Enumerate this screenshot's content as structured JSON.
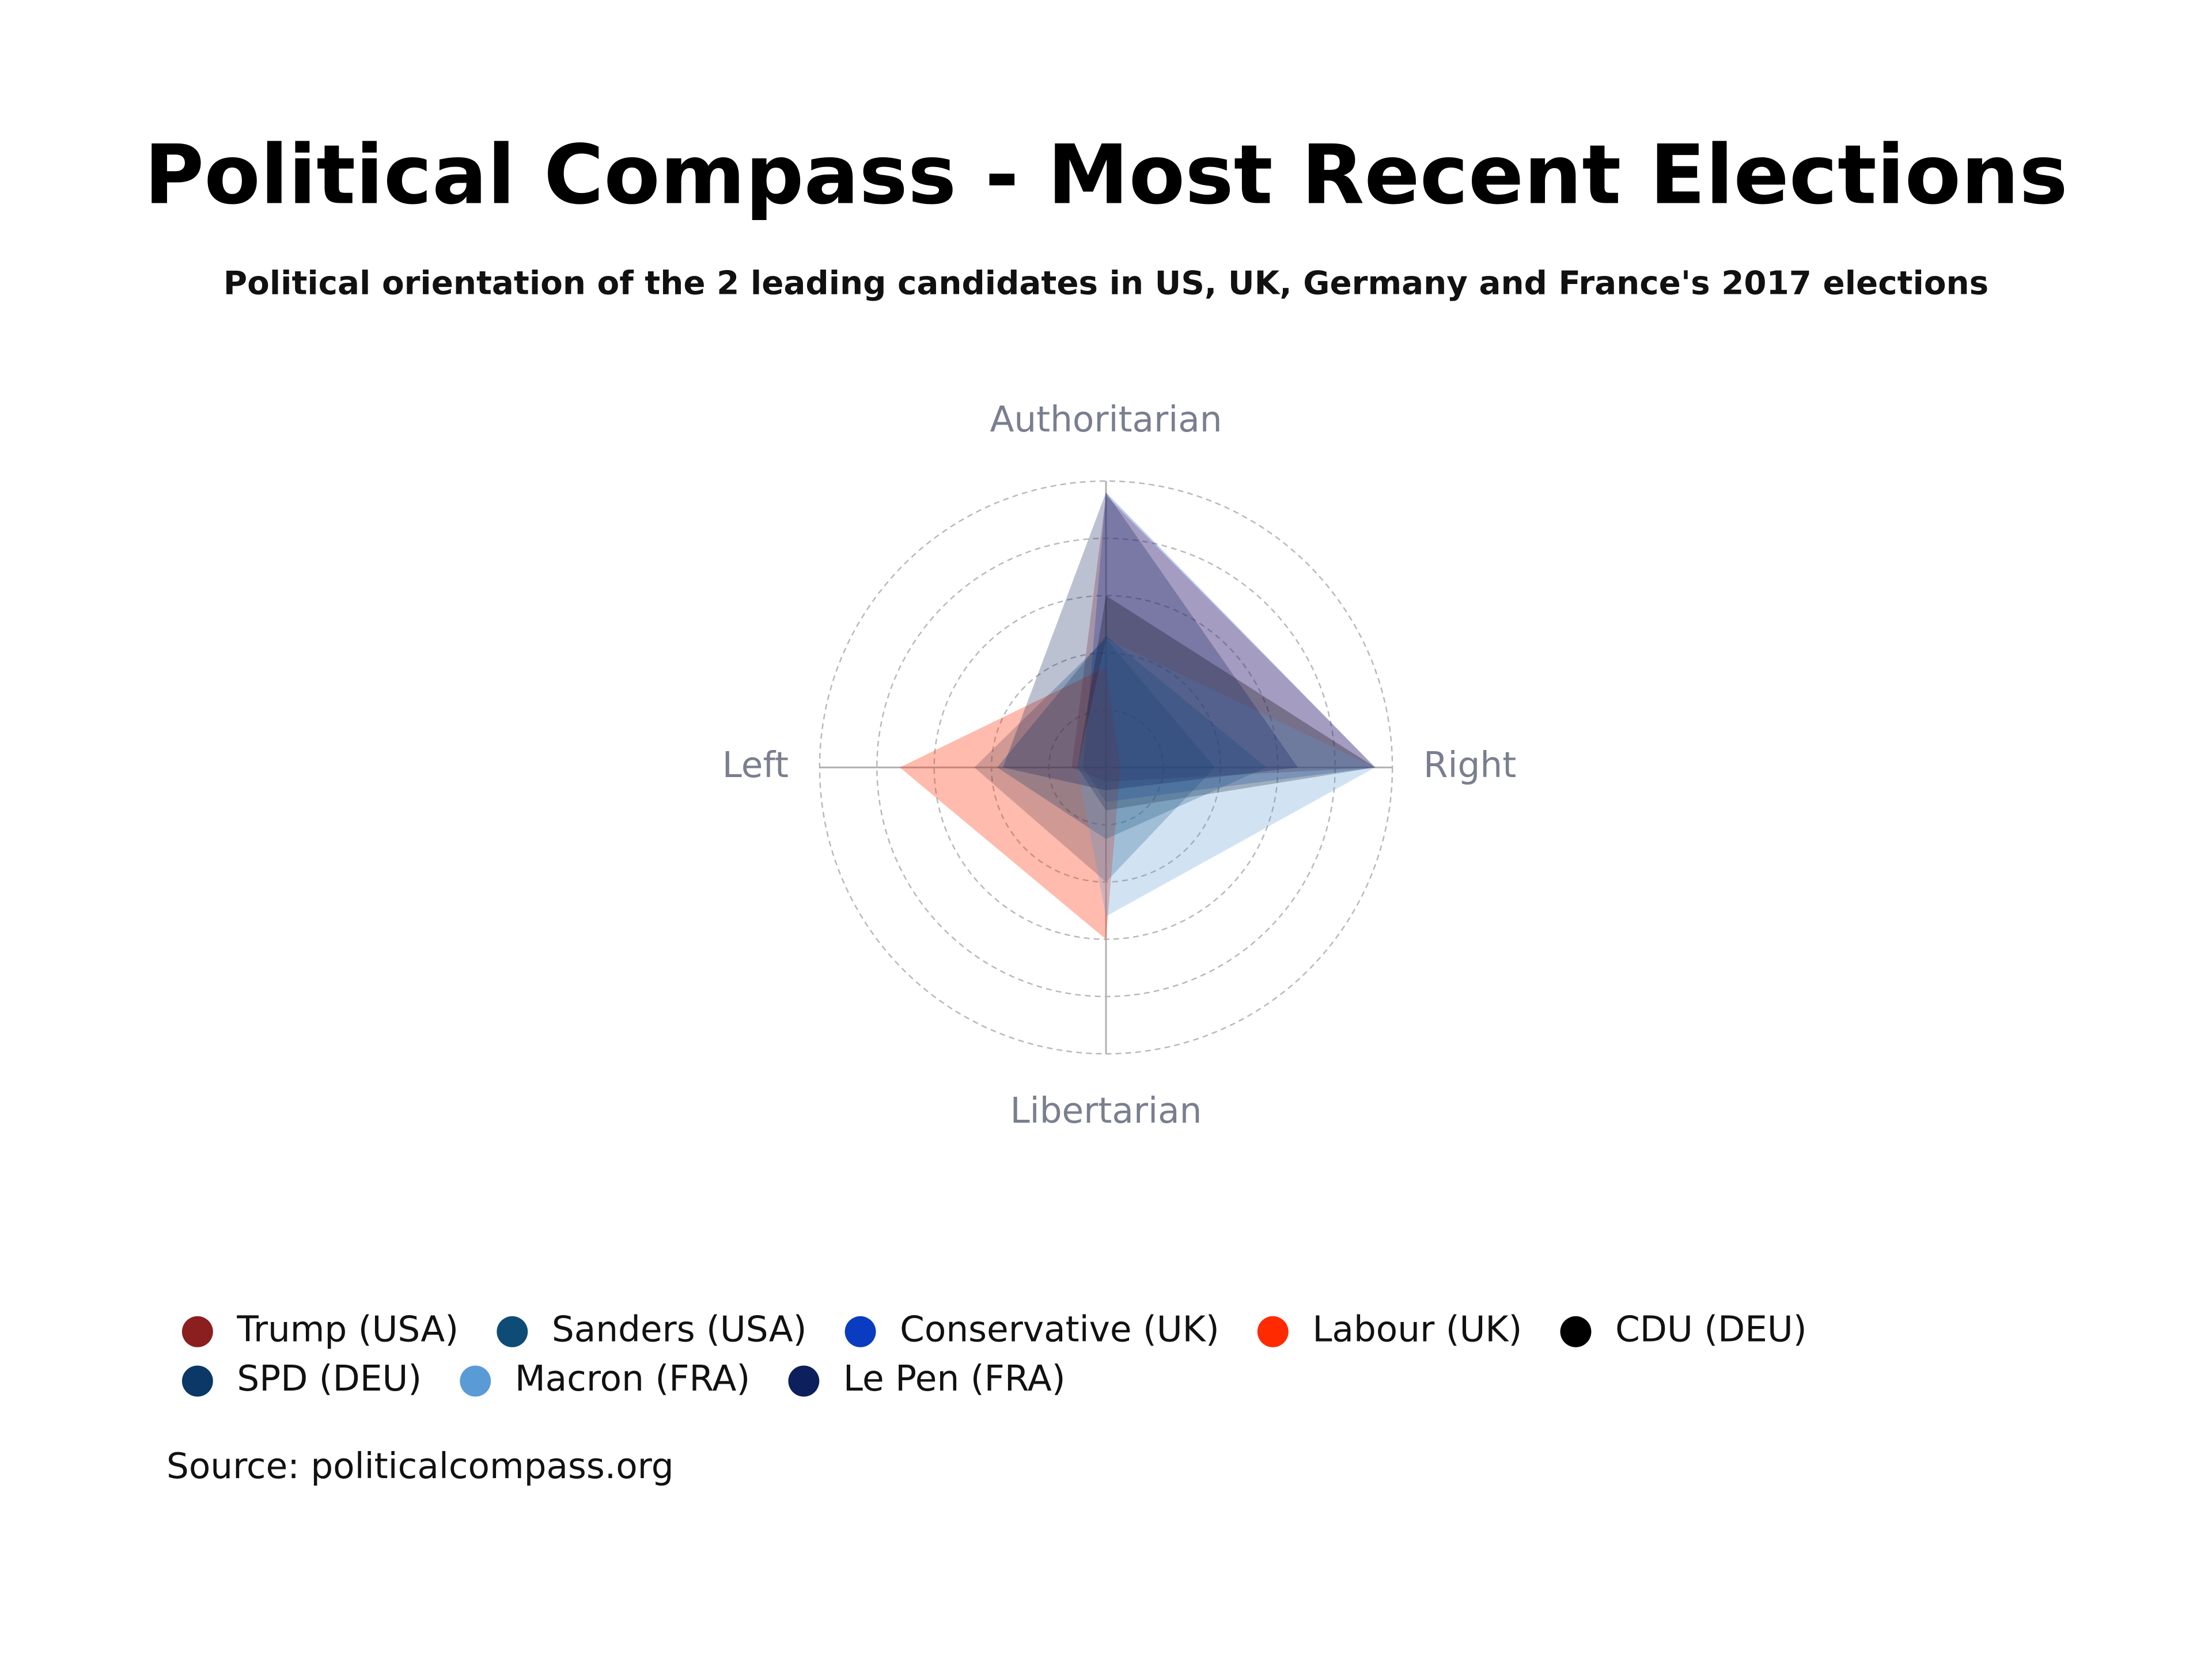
{
  "chart_data": {
    "type": "radar",
    "title": "Political Compass - Most Recent Elections",
    "subtitle": "Political orientation of the 2 leading candidates in US, UK, Germany and France's 2017 elections",
    "source": "Source: politicalcompass.org",
    "categories": [
      "Authoritarian",
      "Right",
      "Libertarian",
      "Left"
    ],
    "rlim": [
      0,
      10
    ],
    "rticks": [
      2,
      4,
      6,
      8,
      10
    ],
    "grid": true,
    "legend": "bottom",
    "series": [
      {
        "name": "Trump (USA)",
        "color": "#8b1f1f",
        "values": [
          9.5,
          9.4,
          0.5,
          1.2
        ]
      },
      {
        "name": "Sanders (USA)",
        "color": "#0f4c75",
        "values": [
          4.5,
          3.8,
          4.0,
          4.6
        ]
      },
      {
        "name": "Conservative (UK)",
        "color": "#0a3cc2",
        "values": [
          9.6,
          9.4,
          1.2,
          0.8
        ]
      },
      {
        "name": "Labour (UK)",
        "color": "#ff2a00",
        "values": [
          3.5,
          0.5,
          6.0,
          7.2
        ]
      },
      {
        "name": "CDU (DEU)",
        "color": "#000000",
        "values": [
          6.0,
          9.4,
          1.5,
          1.0
        ]
      },
      {
        "name": "SPD (DEU)",
        "color": "#0b3866",
        "values": [
          4.6,
          5.6,
          2.5,
          3.8
        ]
      },
      {
        "name": "Macron (FRA)",
        "color": "#5b9bd5",
        "values": [
          4.5,
          9.4,
          5.2,
          1.0
        ]
      },
      {
        "name": "Le Pen (FRA)",
        "color": "#0d1f5c",
        "values": [
          9.6,
          6.7,
          0.8,
          3.6
        ]
      }
    ]
  }
}
